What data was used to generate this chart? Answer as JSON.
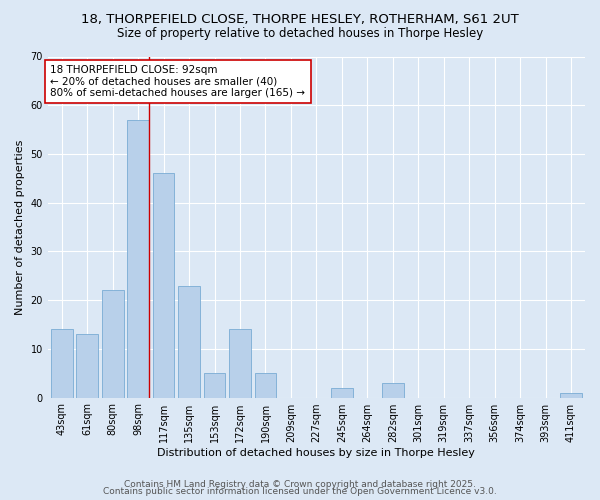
{
  "title1": "18, THORPEFIELD CLOSE, THORPE HESLEY, ROTHERHAM, S61 2UT",
  "title2": "Size of property relative to detached houses in Thorpe Hesley",
  "xlabel": "Distribution of detached houses by size in Thorpe Hesley",
  "ylabel": "Number of detached properties",
  "categories": [
    "43sqm",
    "61sqm",
    "80sqm",
    "98sqm",
    "117sqm",
    "135sqm",
    "153sqm",
    "172sqm",
    "190sqm",
    "209sqm",
    "227sqm",
    "245sqm",
    "264sqm",
    "282sqm",
    "301sqm",
    "319sqm",
    "337sqm",
    "356sqm",
    "374sqm",
    "393sqm",
    "411sqm"
  ],
  "values": [
    14,
    13,
    22,
    57,
    46,
    23,
    5,
    14,
    5,
    0,
    0,
    2,
    0,
    3,
    0,
    0,
    0,
    0,
    0,
    0,
    1
  ],
  "bar_color": "#b8d0ea",
  "bar_edge_color": "#7aacd4",
  "vline_x_index": 3,
  "vline_color": "#cc0000",
  "annotation_text": "18 THORPEFIELD CLOSE: 92sqm\n← 20% of detached houses are smaller (40)\n80% of semi-detached houses are larger (165) →",
  "annotation_box_color": "#ffffff",
  "annotation_box_edge": "#cc0000",
  "ylim": [
    0,
    70
  ],
  "yticks": [
    0,
    10,
    20,
    30,
    40,
    50,
    60,
    70
  ],
  "bg_color": "#dce8f5",
  "plot_bg_color": "#dce8f5",
  "footer1": "Contains HM Land Registry data © Crown copyright and database right 2025.",
  "footer2": "Contains public sector information licensed under the Open Government Licence v3.0.",
  "title1_fontsize": 9.5,
  "title2_fontsize": 8.5,
  "xlabel_fontsize": 8,
  "ylabel_fontsize": 8,
  "tick_fontsize": 7,
  "footer_fontsize": 6.5,
  "annotation_fontsize": 7.5
}
